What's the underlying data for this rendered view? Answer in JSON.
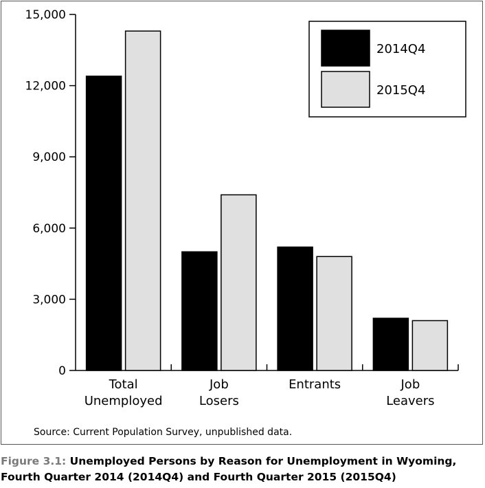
{
  "chart_data": {
    "type": "bar",
    "categories": [
      [
        "Total",
        "Unemployed"
      ],
      [
        "Job",
        "Losers"
      ],
      [
        "Entrants"
      ],
      [
        "Job",
        "Leavers"
      ]
    ],
    "series": [
      {
        "name": "2014Q4",
        "values": [
          12400,
          5000,
          5200,
          2200
        ],
        "color": "#000000"
      },
      {
        "name": "2015Q4",
        "values": [
          14300,
          7400,
          4800,
          2100
        ],
        "color": "#e0e0e0"
      }
    ],
    "ylim": [
      0,
      15000
    ],
    "yticks": [
      0,
      3000,
      6000,
      9000,
      12000,
      15000
    ],
    "ytick_labels": [
      "0",
      "3,000",
      "6,000",
      "9,000",
      "12,000",
      "15,000"
    ],
    "legend_position": "top-right",
    "grid": false
  },
  "source_note": "Source: Current Population Survey, unpublished data.",
  "caption": {
    "figure_label": "Figure 3.1:",
    "line1": "Unemployed Persons by Reason for Unemployment in Wyoming,",
    "line2": "Fourth Quarter 2014 (2014Q4) and Fourth Quarter 2015 (2015Q4)"
  }
}
